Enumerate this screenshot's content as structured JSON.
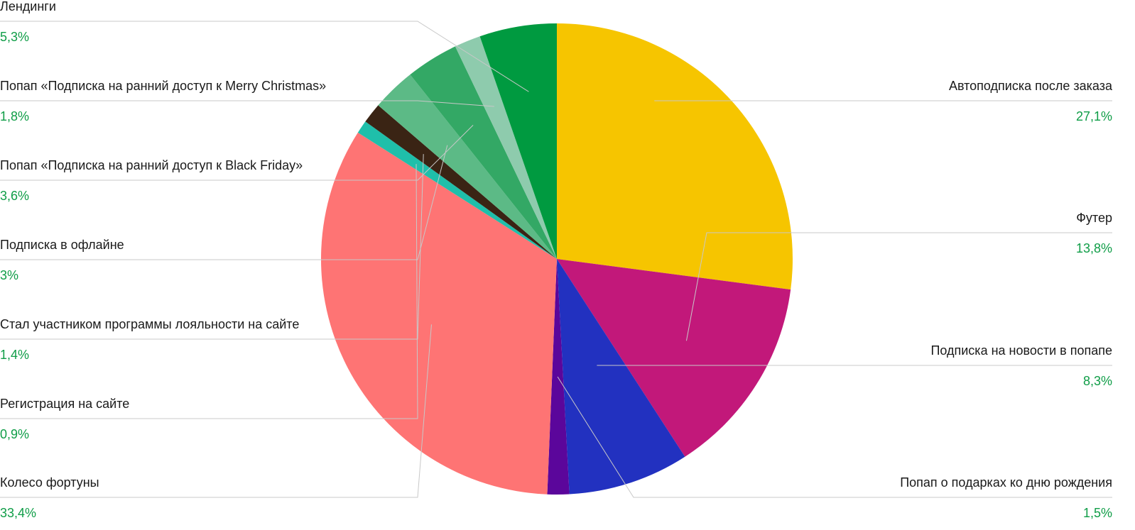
{
  "chart_data": {
    "type": "pie",
    "title": "",
    "slices": [
      {
        "label": "Автоподписка после заказа",
        "value": 27.1,
        "display": "27,1%",
        "color": "#f6c500"
      },
      {
        "label": "Футер",
        "value": 13.8,
        "display": "13,8%",
        "color": "#c2187a"
      },
      {
        "label": "Подписка на новости в попапе",
        "value": 8.3,
        "display": "8,3%",
        "color": "#2231c0"
      },
      {
        "label": "Попап о подарках ко дню рождения",
        "value": 1.5,
        "display": "1,5%",
        "color": "#5b069b"
      },
      {
        "label": "Колесо фортуны",
        "value": 33.4,
        "display": "33,4%",
        "color": "#fe7474"
      },
      {
        "label": "Регистрация на сайте",
        "value": 0.9,
        "display": "0,9%",
        "color": "#1fbfaa"
      },
      {
        "label": "Стал участником программы лояльности на сайте",
        "value": 1.4,
        "display": "1,4%",
        "color": "#3a2414"
      },
      {
        "label": "Подписка в офлайне",
        "value": 3.0,
        "display": "3%",
        "color": "#5cba86"
      },
      {
        "label": "Попап «Подписка на ранний доступ к Black Friday»",
        "value": 3.6,
        "display": "3,6%",
        "color": "#33a865"
      },
      {
        "label": "Попап «Подписка на ранний доступ к Merry Christmas»",
        "value": 1.8,
        "display": "1,8%",
        "color": "#8ecbad"
      },
      {
        "label": "Лендинги",
        "value": 5.3,
        "display": "5,3%",
        "color": "#009a40"
      }
    ],
    "legend": "callout labels with leader lines",
    "start_angle_deg": 0,
    "direction": "clockwise"
  }
}
